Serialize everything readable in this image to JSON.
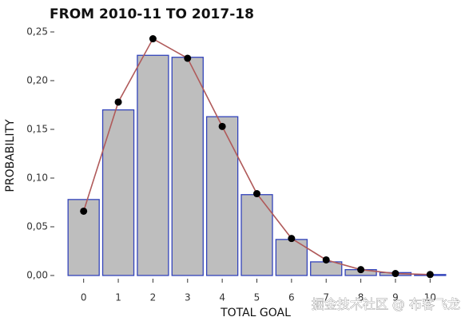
{
  "chart_data": {
    "type": "bar",
    "title": "FROM 2010-11 TO 2017-18",
    "y_label": "PROBABILITY",
    "x_label": "TOTAL GOAL",
    "annotation": "掘金技术社区 @ 布客飞龙",
    "categories": [
      "0",
      "1",
      "2",
      "3",
      "4",
      "5",
      "6",
      "7",
      "8",
      "9",
      "10"
    ],
    "series": [
      {
        "type": "bar",
        "color": "#bebebe",
        "edge_color": "#3344bb",
        "values": [
          0.078,
          0.17,
          0.226,
          0.224,
          0.163,
          0.083,
          0.037,
          0.014,
          0.006,
          0.003,
          0.001
        ]
      },
      {
        "type": "line",
        "color": "#b05a5a",
        "marker_color": "#000000",
        "values": [
          0.066,
          0.178,
          0.243,
          0.223,
          0.153,
          0.084,
          0.038,
          0.016,
          0.006,
          0.002,
          0.001
        ]
      }
    ],
    "ylim": [
      0,
      0.25
    ],
    "yticks": [
      {
        "value": 0,
        "label": "0,00"
      },
      {
        "value": 0.05,
        "label": "0,05"
      },
      {
        "value": 0.1,
        "label": "0,10"
      },
      {
        "value": 0.15,
        "label": "0,15"
      },
      {
        "value": 0.2,
        "label": "0,20"
      },
      {
        "value": 0.25,
        "label": "0,25"
      }
    ],
    "grid": false
  }
}
